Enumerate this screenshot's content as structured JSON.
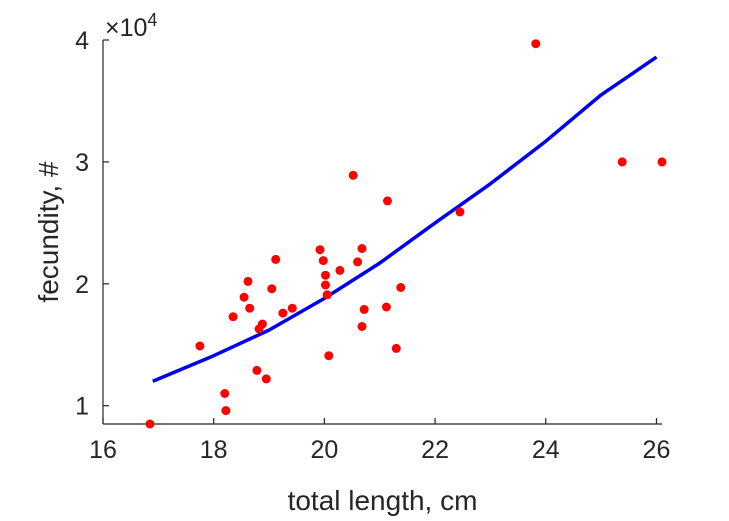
{
  "chart_data": {
    "type": "scatter",
    "xlabel": "total length, cm",
    "ylabel": "fecundity, #",
    "xlim": [
      16,
      26.1
    ],
    "ylim": [
      0.85,
      4.0
    ],
    "xticks": [
      "16",
      "18",
      "20",
      "22",
      "24",
      "26"
    ],
    "yticks": [
      "1",
      "2",
      "3",
      "4"
    ],
    "y_exponent_label": "×10",
    "y_exponent_power": "4",
    "grid": false,
    "series": [
      {
        "kind": "scatter",
        "color": "#ff0000",
        "points": [
          [
            16.85,
            0.85
          ],
          [
            17.75,
            1.49
          ],
          [
            18.2,
            1.1
          ],
          [
            18.22,
            0.96
          ],
          [
            18.35,
            1.73
          ],
          [
            18.55,
            1.89
          ],
          [
            18.62,
            2.02
          ],
          [
            18.65,
            1.8
          ],
          [
            18.78,
            1.29
          ],
          [
            18.82,
            1.63
          ],
          [
            18.88,
            1.67
          ],
          [
            18.95,
            1.22
          ],
          [
            19.05,
            1.96
          ],
          [
            19.12,
            2.2
          ],
          [
            19.25,
            1.76
          ],
          [
            19.42,
            1.8
          ],
          [
            19.92,
            2.28
          ],
          [
            19.98,
            2.19
          ],
          [
            20.02,
            2.07
          ],
          [
            20.02,
            1.99
          ],
          [
            20.05,
            1.91
          ],
          [
            20.08,
            1.41
          ],
          [
            20.28,
            2.11
          ],
          [
            20.52,
            2.89
          ],
          [
            20.6,
            2.18
          ],
          [
            20.68,
            2.29
          ],
          [
            20.68,
            1.65
          ],
          [
            20.72,
            1.79
          ],
          [
            21.12,
            1.81
          ],
          [
            21.14,
            2.68
          ],
          [
            21.3,
            1.47
          ],
          [
            21.38,
            1.97
          ],
          [
            22.45,
            2.59
          ],
          [
            23.82,
            3.97
          ],
          [
            25.38,
            3.0
          ],
          [
            26.1,
            3.0
          ]
        ]
      },
      {
        "kind": "line",
        "color": "#0000ee",
        "points": [
          [
            16.9,
            1.2
          ],
          [
            18.0,
            1.41
          ],
          [
            19.0,
            1.62
          ],
          [
            20.0,
            1.88
          ],
          [
            21.0,
            2.17
          ],
          [
            22.0,
            2.5
          ],
          [
            23.0,
            2.82
          ],
          [
            24.0,
            3.17
          ],
          [
            25.0,
            3.55
          ],
          [
            26.0,
            3.86
          ]
        ]
      }
    ]
  }
}
